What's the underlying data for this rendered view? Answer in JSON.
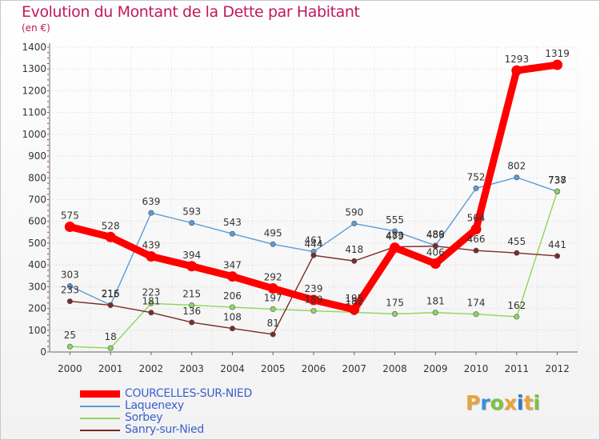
{
  "header": {
    "title": "Evolution du Montant de la Dette par Habitant",
    "subtitle": "(en €)"
  },
  "logo": {
    "text": "Proxiti",
    "colors": [
      "#e8a33b",
      "#3a8fd6",
      "#7cc242",
      "#e8a33b",
      "#2f78c4",
      "#e8a33b",
      "#7cc242"
    ]
  },
  "chart_data": {
    "type": "line",
    "title": "Evolution du Montant de la Dette par Habitant",
    "ylabel": "(en €)",
    "xlabel": "",
    "x": [
      "2000",
      "2001",
      "2002",
      "2003",
      "2004",
      "2005",
      "2006",
      "2007",
      "2008",
      "2009",
      "2010",
      "2011",
      "2012"
    ],
    "ylim": [
      0,
      1400
    ],
    "yticks": [
      0,
      100,
      200,
      300,
      400,
      500,
      600,
      700,
      800,
      900,
      1000,
      1100,
      1200,
      1300,
      1400
    ],
    "grid": true,
    "legend": "bottom-left",
    "series": [
      {
        "name": "COURCELLES-SUR-NIED",
        "color": "#ff0000",
        "values": [
          575,
          528,
          439,
          394,
          347,
          292,
          239,
          195,
          479,
          406,
          564,
          1293,
          1319
        ]
      },
      {
        "name": "Laquenexy",
        "color": "#5b9bd5",
        "values": [
          303,
          216,
          639,
          593,
          543,
          495,
          461,
          590,
          555,
          489,
          752,
          802,
          737
        ]
      },
      {
        "name": "Sorbey",
        "color": "#8fd65b",
        "values": [
          25,
          18,
          223,
          215,
          206,
          197,
          189,
          182,
          175,
          181,
          174,
          162,
          738
        ]
      },
      {
        "name": "Sanry-sur-Nied",
        "color": "#7b2a2a",
        "values": [
          233,
          215,
          181,
          136,
          108,
          81,
          444,
          418,
          483,
          486,
          466,
          455,
          441
        ]
      }
    ]
  }
}
